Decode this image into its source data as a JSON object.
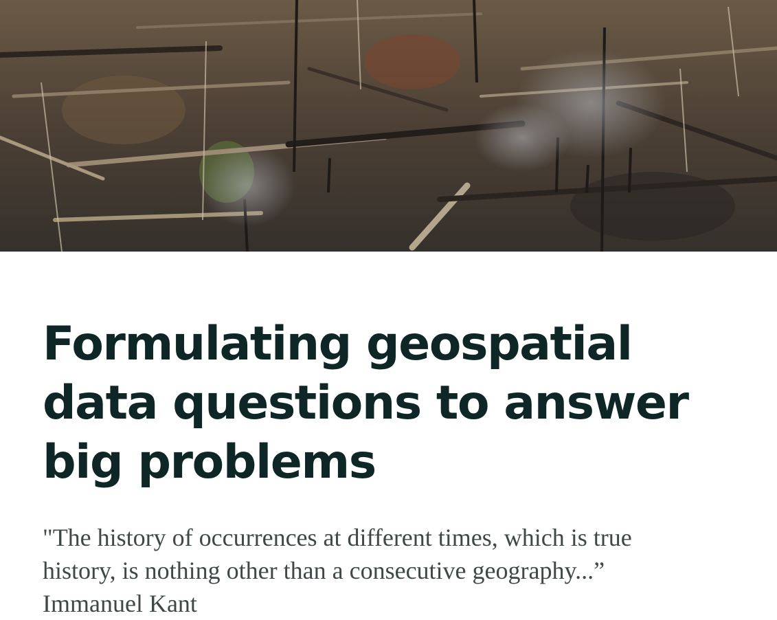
{
  "hero": {
    "icon": "deforestation-photo"
  },
  "article": {
    "title": "Formulating geospatial data questions to answer big problems",
    "quote_line1": "\"The history of occurrences at different times, which is true",
    "quote_line2": "history, is nothing other than a consecutive geography...”",
    "author": "Immanuel Kant"
  }
}
